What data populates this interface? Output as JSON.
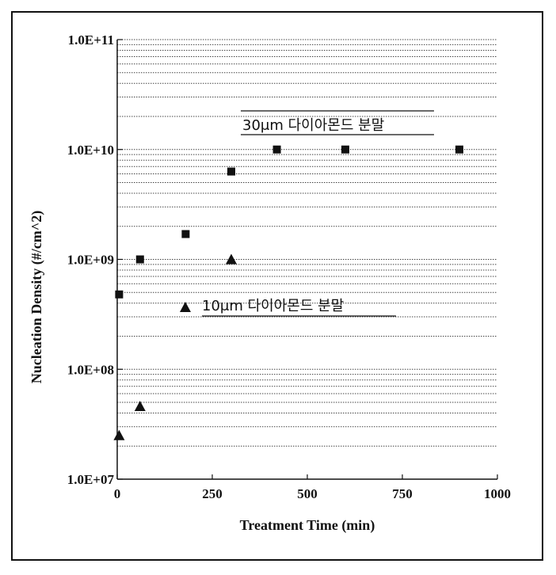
{
  "chart_data": {
    "type": "scatter",
    "xlabel": "Treatment Time (min)",
    "ylabel": "Nucleation Density (#/cm^2)",
    "xlim": [
      0,
      1000
    ],
    "ylim": [
      10000000,
      100000000000
    ],
    "y_scale": "log",
    "grid": "dotted horizontal",
    "x_ticks": [
      "0",
      "250",
      "500",
      "750",
      "1000"
    ],
    "y_ticks": [
      "1.0E+07",
      "1.0E+08",
      "1.0E+09",
      "1.0E+10",
      "1.0E+11"
    ],
    "series": [
      {
        "name": "30μm 다이아몬드 분말",
        "marker": "square",
        "x": [
          5,
          60,
          180,
          300,
          420,
          600,
          900
        ],
        "y": [
          480000000,
          1000000000,
          1700000000,
          6300000000,
          10000000000,
          10000000000,
          10000000000
        ]
      },
      {
        "name": "10μm 다이아몬드 분말",
        "marker": "triangle",
        "x": [
          5,
          60,
          300
        ],
        "y": [
          25000000,
          46000000,
          1000000000
        ]
      }
    ],
    "colors": {
      "marker": "#111111",
      "grid": "#444444"
    }
  }
}
